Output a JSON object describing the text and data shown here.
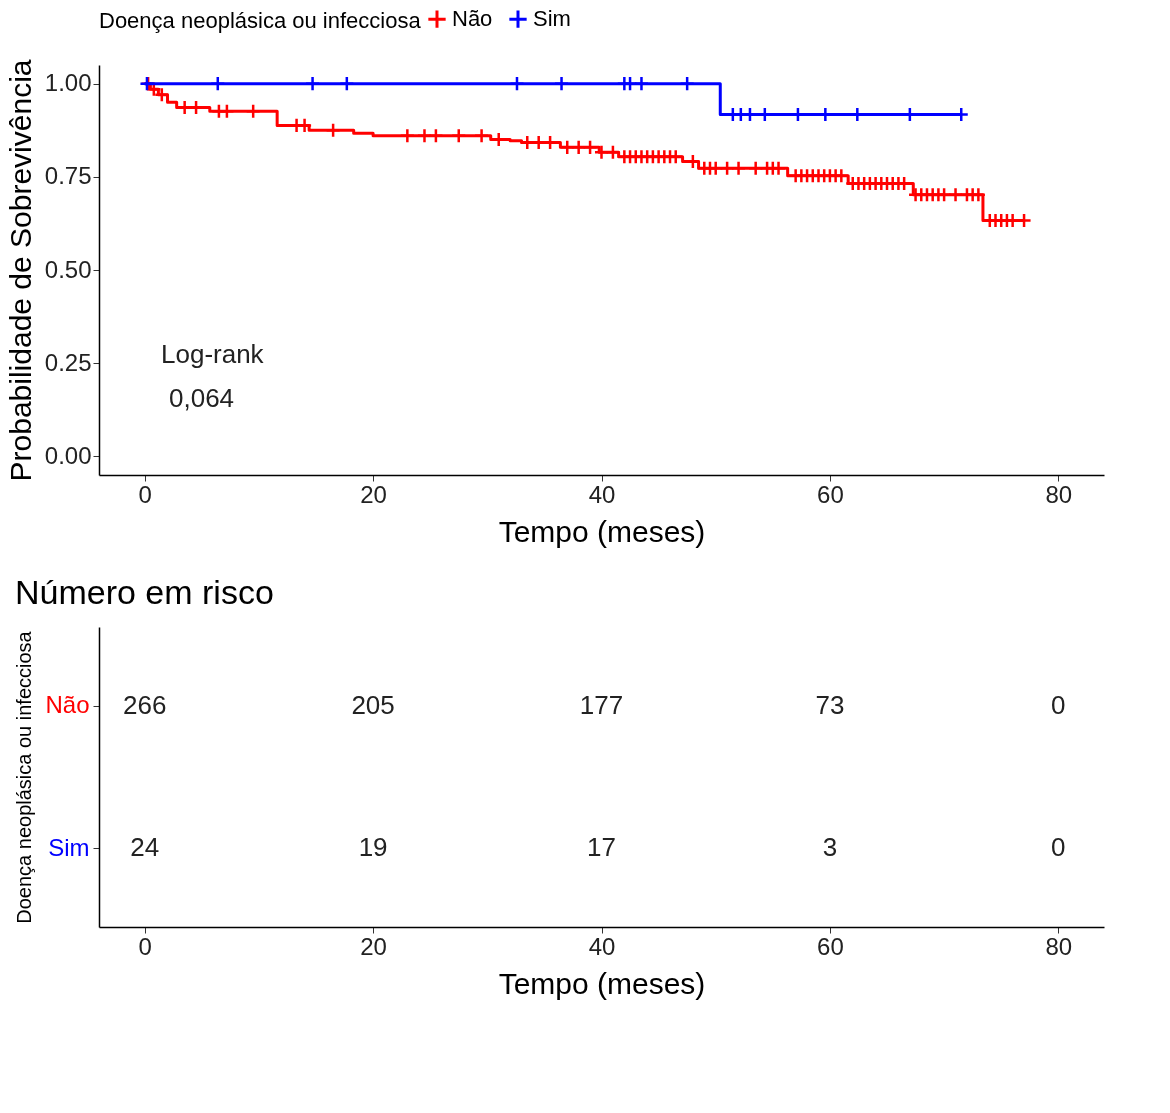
{
  "chart_data": [
    {
      "type": "step",
      "xlabel": "Tempo (meses)",
      "ylabel": "Probabilidade de Sobrevivência",
      "legend_title": "Doença neoplásica ou infecciosa",
      "legend": "top",
      "grid": false,
      "xlim": [
        -4,
        84
      ],
      "xticks": [
        0,
        20,
        40,
        60,
        80
      ],
      "ylim": [
        -0.05,
        1.05
      ],
      "yticks": [
        {
          "value": 0,
          "label": "0.00"
        },
        {
          "value": 0.25,
          "label": "0.25"
        },
        {
          "value": 0.5,
          "label": "0.50"
        },
        {
          "value": 0.75,
          "label": "0.75"
        },
        {
          "value": 1,
          "label": "1.00"
        }
      ],
      "annotations": [
        "Log-rank",
        "0,064"
      ],
      "series": [
        {
          "name": "Não",
          "type": "step",
          "color": "#ff0000",
          "x": [
            0,
            0.5,
            1.2,
            2.0,
            2.8,
            5.7,
            11.6,
            14.4,
            18.3,
            20.0,
            30.3,
            32.0,
            33.0,
            36.4,
            39.8,
            41.5,
            47.1,
            48.5,
            56.3,
            61.6,
            67.3,
            73.4,
            77
          ],
          "values": [
            1,
            0.985,
            0.97,
            0.95,
            0.936,
            0.926,
            0.888,
            0.875,
            0.867,
            0.86,
            0.85,
            0.847,
            0.842,
            0.829,
            0.816,
            0.804,
            0.791,
            0.773,
            0.753,
            0.732,
            0.702,
            0.633,
            0.633
          ]
        },
        {
          "type": "scatter",
          "marker": "cross",
          "color": "#ff0000",
          "x": [
            0.3,
            0.8,
            1.5,
            3.5,
            4.5,
            6.5,
            7.2,
            9.5,
            13.3,
            14,
            16.5,
            23,
            24.5,
            25.5,
            27.5,
            29.5,
            31,
            33.5,
            34.5,
            35.5,
            37,
            38,
            39,
            40,
            41,
            42,
            42.5,
            43,
            43.5,
            44,
            44.5,
            45,
            45.5,
            46,
            46.5,
            48,
            49,
            49.5,
            50,
            51,
            52,
            53.5,
            54.5,
            55,
            55.5,
            57,
            57.5,
            58,
            58.5,
            59,
            59.5,
            60,
            60.5,
            61,
            62,
            62.5,
            63,
            63.5,
            64,
            64.5,
            65,
            65.5,
            66,
            66.5,
            67.5,
            68,
            68.5,
            69,
            69.5,
            70,
            71,
            72,
            72.5,
            73,
            74,
            74.5,
            75,
            75.5,
            76,
            77
          ],
          "values": [
            1,
            0.985,
            0.97,
            0.936,
            0.936,
            0.926,
            0.926,
            0.926,
            0.888,
            0.888,
            0.875,
            0.86,
            0.86,
            0.86,
            0.86,
            0.86,
            0.85,
            0.842,
            0.842,
            0.842,
            0.829,
            0.829,
            0.829,
            0.816,
            0.816,
            0.804,
            0.804,
            0.804,
            0.804,
            0.804,
            0.804,
            0.804,
            0.804,
            0.804,
            0.804,
            0.791,
            0.773,
            0.773,
            0.773,
            0.773,
            0.773,
            0.773,
            0.773,
            0.773,
            0.773,
            0.753,
            0.753,
            0.753,
            0.753,
            0.753,
            0.753,
            0.753,
            0.753,
            0.753,
            0.732,
            0.732,
            0.732,
            0.732,
            0.732,
            0.732,
            0.732,
            0.732,
            0.732,
            0.732,
            0.702,
            0.702,
            0.702,
            0.702,
            0.702,
            0.702,
            0.702,
            0.702,
            0.702,
            0.702,
            0.633,
            0.633,
            0.633,
            0.633,
            0.633,
            0.633
          ]
        },
        {
          "name": "Sim",
          "type": "step",
          "color": "#0000ff",
          "x": [
            0,
            50.4,
            71.5
          ],
          "values": [
            1,
            0.917,
            0.917
          ]
        },
        {
          "type": "scatter",
          "marker": "cross",
          "color": "#0000ff",
          "x": [
            0.2,
            6.4,
            14.7,
            17.7,
            32.6,
            36.5,
            42,
            42.5,
            43.5,
            47.5,
            51.5,
            52.2,
            53,
            54.3,
            57.2,
            59.6,
            62.4,
            67,
            71.5
          ],
          "values": [
            1,
            1,
            1,
            1,
            1,
            1,
            1,
            1,
            1,
            1,
            0.917,
            0.917,
            0.917,
            0.917,
            0.917,
            0.917,
            0.917,
            0.917,
            0.917
          ]
        }
      ]
    },
    {
      "type": "heatmap",
      "title": "Número em risco",
      "xlabel": "Tempo (meses)",
      "ylabel": "Doença neoplásica ou infecciosa",
      "data_labels": true,
      "categories": [
        "0",
        "20",
        "40",
        "60",
        "80"
      ],
      "y_categories": [
        "Não",
        "Sim"
      ],
      "colors": [
        "#ff0000",
        "#0000ff"
      ],
      "cells": [
        [
          266,
          205,
          177,
          73,
          0
        ],
        [
          24,
          19,
          17,
          3,
          0
        ]
      ]
    }
  ]
}
